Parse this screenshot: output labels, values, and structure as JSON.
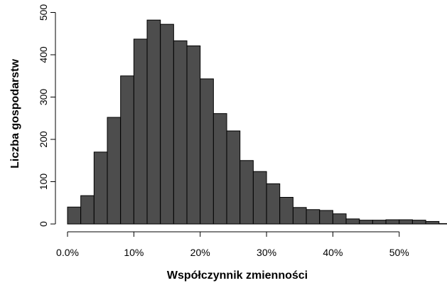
{
  "chart_data": {
    "type": "bar",
    "title": "",
    "xlabel": "Współczynnik zmienności",
    "ylabel": "Liczba gospodarstw",
    "bin_width": 0.02,
    "bin_starts": [
      0.0,
      0.02,
      0.04,
      0.06,
      0.08,
      0.1,
      0.12,
      0.14,
      0.16,
      0.18,
      0.2,
      0.22,
      0.24,
      0.26,
      0.28,
      0.3,
      0.32,
      0.34,
      0.36,
      0.38,
      0.4,
      0.42,
      0.44,
      0.46,
      0.48,
      0.5,
      0.52,
      0.54,
      0.56
    ],
    "values": [
      40,
      67,
      170,
      252,
      350,
      437,
      482,
      472,
      433,
      421,
      343,
      261,
      220,
      150,
      124,
      95,
      63,
      39,
      34,
      32,
      24,
      12,
      9,
      9,
      10,
      10,
      9,
      6,
      1
    ],
    "xlim": [
      0.0,
      0.57
    ],
    "ylim": [
      0,
      500
    ],
    "x_ticks": [
      0.0,
      0.1,
      0.2,
      0.3,
      0.4,
      0.5
    ],
    "x_tick_labels": [
      "0.0%",
      "10%",
      "20%",
      "30%",
      "40%",
      "50%"
    ],
    "y_ticks": [
      0,
      100,
      200,
      300,
      400,
      500
    ],
    "y_tick_labels": [
      "0",
      "100",
      "200",
      "300",
      "400",
      "500"
    ],
    "grid": false,
    "bar_color": "#4d4d4d"
  }
}
